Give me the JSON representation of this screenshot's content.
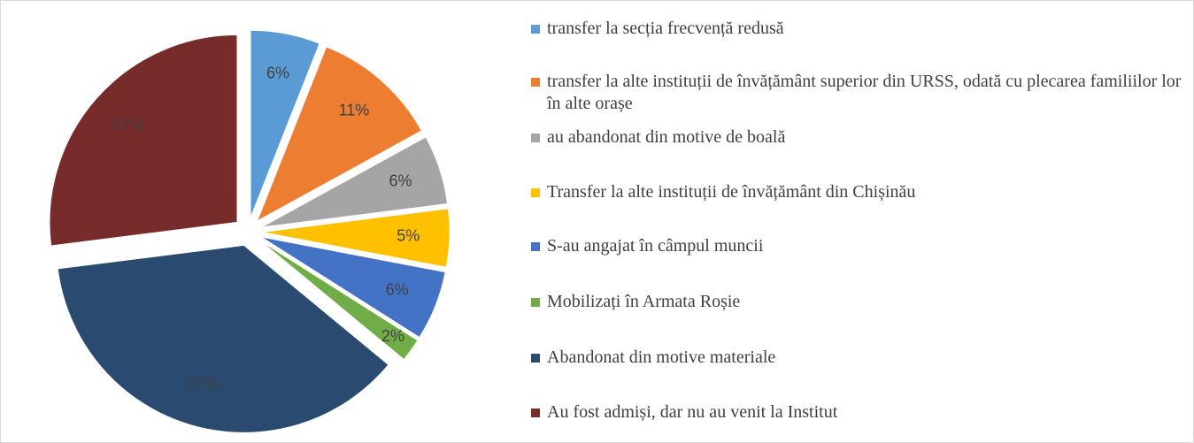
{
  "chart_data": {
    "type": "pie",
    "categories": [
      "transfer la secția frecvență redusă",
      "transfer la alte instituții de învățământ superior din URSS, odată cu plecarea familiilor lor în alte orașe",
      "au abandonat din motive de boală",
      "Transfer la alte instituții de învățământ din Chișinău",
      "S-au angajat în câmpul muncii",
      "Mobilizați în Armata Roșie",
      "Abandonat din motive materiale",
      "Au fost admiși, dar nu au venit la Institut"
    ],
    "values": [
      6,
      11,
      6,
      5,
      6,
      2,
      37,
      27
    ],
    "value_labels": [
      "6%",
      "11%",
      "6%",
      "5%",
      "6%",
      "2%",
      "37%",
      "27%"
    ],
    "colors": [
      "#5b9bd5",
      "#ed7d31",
      "#a5a5a5",
      "#ffc000",
      "#4472c4",
      "#70ad47",
      "#2b4a70",
      "#772c2b"
    ],
    "legend": "right"
  }
}
